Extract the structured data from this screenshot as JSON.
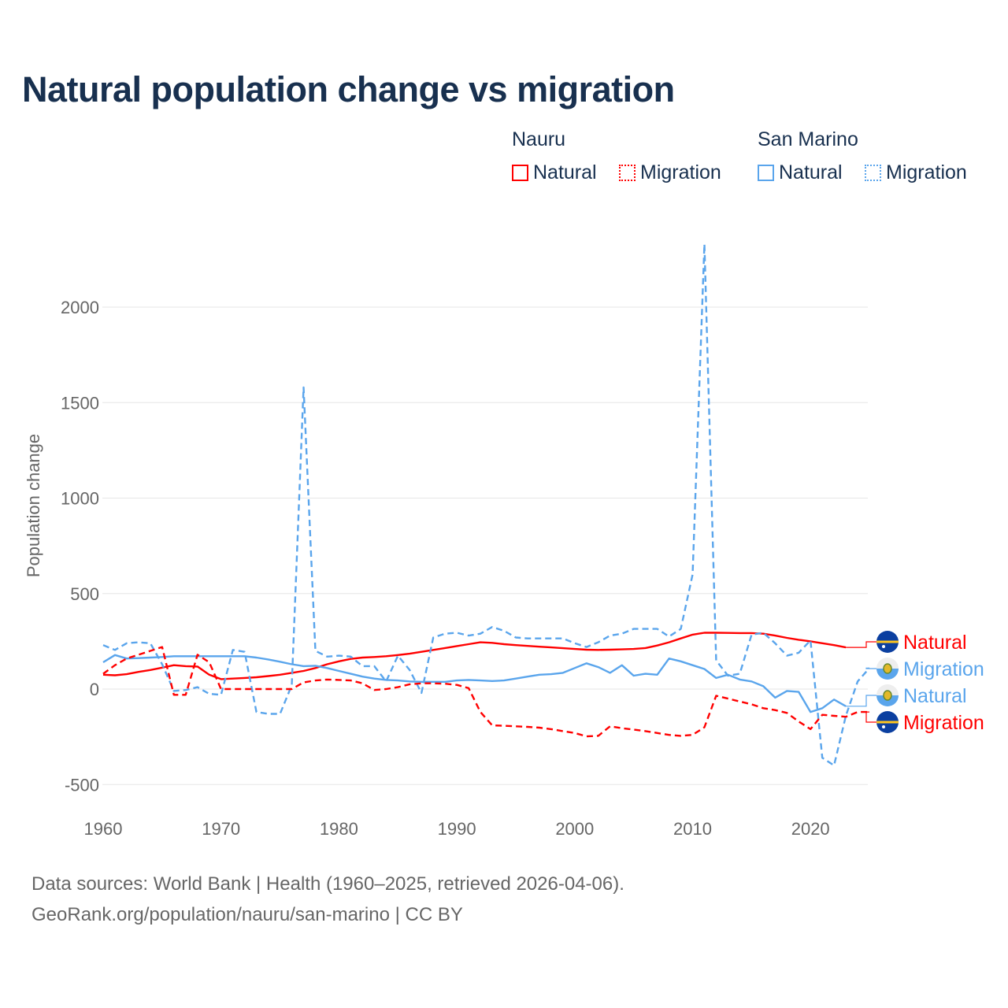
{
  "title": "Natural population change vs migration",
  "legend": {
    "groups": [
      {
        "name": "Nauru",
        "color": "#ff0000",
        "items": [
          "Natural",
          "Migration"
        ]
      },
      {
        "name": "San Marino",
        "color": "#5aa5ec",
        "items": [
          "Natural",
          "Migration"
        ]
      }
    ]
  },
  "source_line1": "Data sources: World Bank | Health (1960–2025, retrieved 2026-04-06).",
  "source_line2": "GeoRank.org/population/nauru/san-marino | CC BY",
  "chart_data": {
    "type": "line",
    "title": "Natural population change vs migration",
    "xlabel": "",
    "ylabel": "Population change",
    "xlim": [
      1960,
      2025
    ],
    "ylim": [
      -500,
      2350
    ],
    "yticks": [
      -500,
      0,
      500,
      1000,
      1500,
      2000
    ],
    "xticks": [
      1960,
      1970,
      1980,
      1990,
      2000,
      2010,
      2020
    ],
    "grid": true,
    "legend_position": "top-right",
    "series": [
      {
        "name": "Nauru Natural",
        "label": "Natural",
        "color": "#ff0000",
        "dash": false,
        "start": 1960,
        "values": [
          75,
          72,
          78,
          90,
          100,
          112,
          125,
          120,
          118,
          75,
          52,
          55,
          58,
          62,
          68,
          75,
          85,
          95,
          110,
          130,
          145,
          158,
          165,
          168,
          172,
          178,
          185,
          195,
          205,
          215,
          225,
          235,
          245,
          242,
          235,
          230,
          226,
          222,
          218,
          214,
          210,
          206,
          205,
          206,
          208,
          210,
          215,
          228,
          245,
          265,
          285,
          295,
          295,
          294,
          293,
          293,
          290,
          280,
          268,
          258,
          250,
          240,
          230,
          218
        ]
      },
      {
        "name": "San Marino Migration",
        "label": "Migration",
        "color": "#5aa5ec",
        "dash": true,
        "start": 1960,
        "values": [
          230,
          205,
          240,
          245,
          240,
          130,
          -10,
          -5,
          10,
          -25,
          -30,
          205,
          195,
          -120,
          -130,
          -130,
          20,
          1580,
          200,
          170,
          175,
          170,
          120,
          120,
          40,
          175,
          100,
          -20,
          270,
          290,
          295,
          280,
          290,
          325,
          305,
          270,
          265,
          265,
          265,
          265,
          240,
          220,
          245,
          280,
          290,
          315,
          315,
          315,
          275,
          315,
          600,
          2330,
          150,
          70,
          80,
          285,
          295,
          240,
          175,
          190,
          255,
          -360,
          -400,
          -140,
          40,
          110
        ]
      },
      {
        "name": "San Marino Natural",
        "label": "Natural",
        "color": "#5aa5ec",
        "dash": false,
        "start": 1960,
        "values": [
          140,
          178,
          160,
          162,
          165,
          168,
          172,
          172,
          172,
          172,
          172,
          172,
          172,
          165,
          155,
          143,
          130,
          120,
          122,
          110,
          95,
          80,
          65,
          55,
          48,
          45,
          40,
          38,
          38,
          38,
          45,
          48,
          45,
          42,
          45,
          55,
          65,
          75,
          78,
          85,
          110,
          135,
          115,
          85,
          125,
          70,
          80,
          75,
          160,
          145,
          125,
          105,
          58,
          75,
          50,
          40,
          15,
          -45,
          -10,
          -15,
          -120,
          -100,
          -55,
          -90
        ]
      },
      {
        "name": "Nauru Migration",
        "label": "Migration",
        "color": "#ff0000",
        "dash": true,
        "start": 1960,
        "values": [
          80,
          125,
          160,
          180,
          200,
          220,
          -30,
          -30,
          180,
          140,
          0,
          0,
          0,
          0,
          0,
          0,
          0,
          35,
          45,
          50,
          48,
          45,
          30,
          -5,
          0,
          10,
          25,
          30,
          30,
          28,
          22,
          5,
          -120,
          -190,
          -192,
          -195,
          -198,
          -202,
          -210,
          -220,
          -230,
          -248,
          -245,
          -195,
          -205,
          -212,
          -220,
          -230,
          -240,
          -245,
          -240,
          -200,
          -35,
          -50,
          -65,
          -80,
          -100,
          -110,
          -125,
          -170,
          -210,
          -135,
          -140,
          -145,
          -120,
          -120
        ]
      }
    ]
  }
}
